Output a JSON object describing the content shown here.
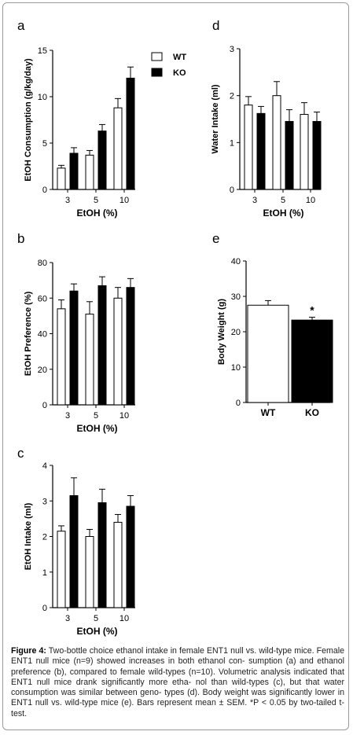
{
  "colors": {
    "wt": "#ffffff",
    "ko": "#000000",
    "axis": "#000000"
  },
  "legend": {
    "wt": "WT",
    "ko": "KO"
  },
  "chart_data": [
    {
      "panel": "a",
      "type": "bar",
      "ylabel": "EtOH Consumption (g/kg/day)",
      "xlabel": "EtOH (%)",
      "ylim": [
        0,
        15
      ],
      "yticks": [
        "0",
        "5",
        "10",
        "15"
      ],
      "categories": [
        "3",
        "5",
        "10"
      ],
      "series": [
        {
          "name": "WT",
          "values": [
            2.3,
            3.7,
            8.8
          ],
          "sem": [
            0.3,
            0.5,
            1.0
          ]
        },
        {
          "name": "KO",
          "values": [
            3.9,
            6.3,
            12.0
          ],
          "sem": [
            0.6,
            0.7,
            1.2
          ]
        }
      ]
    },
    {
      "panel": "b",
      "type": "bar",
      "ylabel": "EtOH Preference (%)",
      "xlabel": "EtOH (%)",
      "ylim": [
        0,
        80
      ],
      "yticks": [
        "0",
        "20",
        "40",
        "60",
        "80"
      ],
      "categories": [
        "3",
        "5",
        "10"
      ],
      "series": [
        {
          "name": "WT",
          "values": [
            54,
            51,
            60
          ],
          "sem": [
            5,
            7,
            6
          ]
        },
        {
          "name": "KO",
          "values": [
            64,
            67,
            66
          ],
          "sem": [
            4,
            5,
            5
          ]
        }
      ]
    },
    {
      "panel": "c",
      "type": "bar",
      "ylabel": "EtOH Intake (ml)",
      "xlabel": "EtOH (%)",
      "ylim": [
        0,
        4
      ],
      "yticks": [
        "0",
        "1",
        "2",
        "3",
        "4"
      ],
      "categories": [
        "3",
        "5",
        "10"
      ],
      "series": [
        {
          "name": "WT",
          "values": [
            2.15,
            2.0,
            2.4
          ],
          "sem": [
            0.15,
            0.2,
            0.22
          ]
        },
        {
          "name": "KO",
          "values": [
            3.15,
            2.95,
            2.85
          ],
          "sem": [
            0.5,
            0.38,
            0.3
          ]
        }
      ]
    },
    {
      "panel": "d",
      "type": "bar",
      "ylabel": "Water Intake (ml)",
      "xlabel": "EtOH (%)",
      "ylim": [
        0,
        3
      ],
      "yticks": [
        "0",
        "1",
        "2",
        "3"
      ],
      "categories": [
        "3",
        "5",
        "10"
      ],
      "series": [
        {
          "name": "WT",
          "values": [
            1.8,
            2.0,
            1.6
          ],
          "sem": [
            0.18,
            0.3,
            0.25
          ]
        },
        {
          "name": "KO",
          "values": [
            1.62,
            1.45,
            1.45
          ],
          "sem": [
            0.15,
            0.25,
            0.2
          ]
        }
      ]
    },
    {
      "panel": "e",
      "type": "bar",
      "ylabel": "Body Weight (g)",
      "xlabel": "",
      "ylim": [
        0,
        40
      ],
      "yticks": [
        "0",
        "10",
        "20",
        "30",
        "40"
      ],
      "categories": [
        "WT",
        "KO"
      ],
      "values": [
        27.5,
        23.3
      ],
      "sem": [
        1.3,
        0.8
      ],
      "annotation": "*"
    }
  ],
  "caption": {
    "label": "Figure 4:",
    "lines": [
      "Two-bottle choice ethanol intake in female ENT1 null vs. wild-type",
      "mice. Female ENT1 null mice (n=9) showed increases in both ethanol con-",
      "sumption (a) and ethanol preference (b), compared to female wild-types (n=10).",
      "Volumetric analysis indicated that ENT1 null mice drank significantly more etha-",
      "nol than wild-types (c), but that water consumption was similar between geno-",
      "types (d).  Body weight was significantly lower in ENT1 null vs. wild-type mice",
      "(e). Bars represent mean ± SEM. *P < 0.05 by two-tailed t-test."
    ]
  }
}
